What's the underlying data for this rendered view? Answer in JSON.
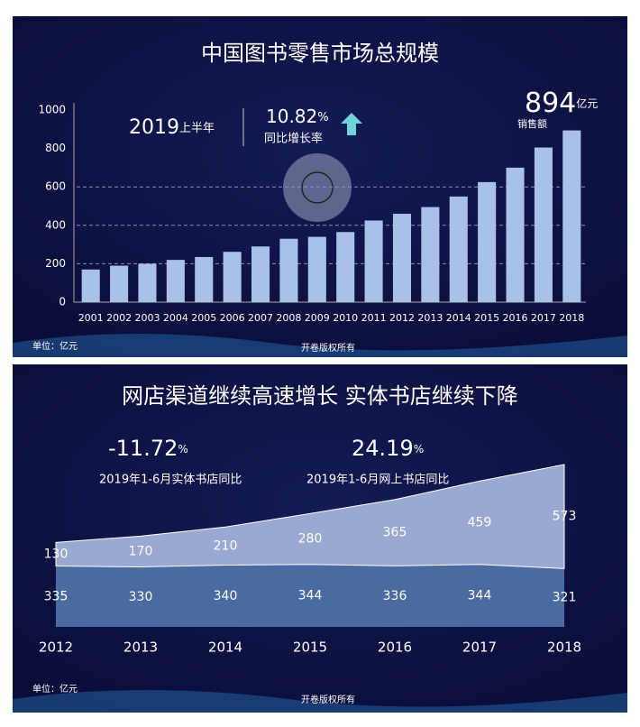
{
  "chart_data": [
    {
      "type": "bar",
      "title": "中国图书零售市场总规模",
      "categories": [
        "2001",
        "2002",
        "2003",
        "2004",
        "2005",
        "2006",
        "2007",
        "2008",
        "2009",
        "2010",
        "2011",
        "2012",
        "2013",
        "2014",
        "2015",
        "2016",
        "2017",
        "2018"
      ],
      "values": [
        170,
        190,
        200,
        220,
        235,
        262,
        290,
        330,
        340,
        365,
        425,
        460,
        495,
        550,
        625,
        700,
        805,
        894
      ],
      "color": "#a9c0e8",
      "ylim": [
        0,
        1000
      ],
      "yticks": [
        0,
        200,
        400,
        600,
        800,
        1000
      ],
      "grid": true,
      "annotations": {
        "total": "894",
        "total_unit": "亿元",
        "total_label": "销售额",
        "year": "2019",
        "period": "上半年",
        "growth": "10.82",
        "growth_unit": "%",
        "growth_label": "同比增长率",
        "unit_note": "单位：亿元",
        "copyright": "开卷版权所有"
      }
    },
    {
      "type": "area",
      "title": "网店渠道继续高速增长  实体书店继续下降",
      "stacked": true,
      "categories": [
        "2012",
        "2013",
        "2014",
        "2015",
        "2016",
        "2017",
        "2018"
      ],
      "series": [
        {
          "color": "#4a6aa0",
          "values": [
            335,
            330,
            340,
            344,
            336,
            344,
            321
          ]
        },
        {
          "color": "#9aa9d2",
          "values": [
            130,
            170,
            210,
            280,
            365,
            459,
            573
          ]
        }
      ],
      "annotations": {
        "offline": "-11.72",
        "offline_unit": "%",
        "offline_label": "2019年1-6月实体书店同比",
        "online": "24.19",
        "online_unit": "%",
        "online_label": "2019年1-6月网上书店同比",
        "unit_note": "单位：亿元",
        "copyright": "开卷版权所有"
      }
    }
  ]
}
